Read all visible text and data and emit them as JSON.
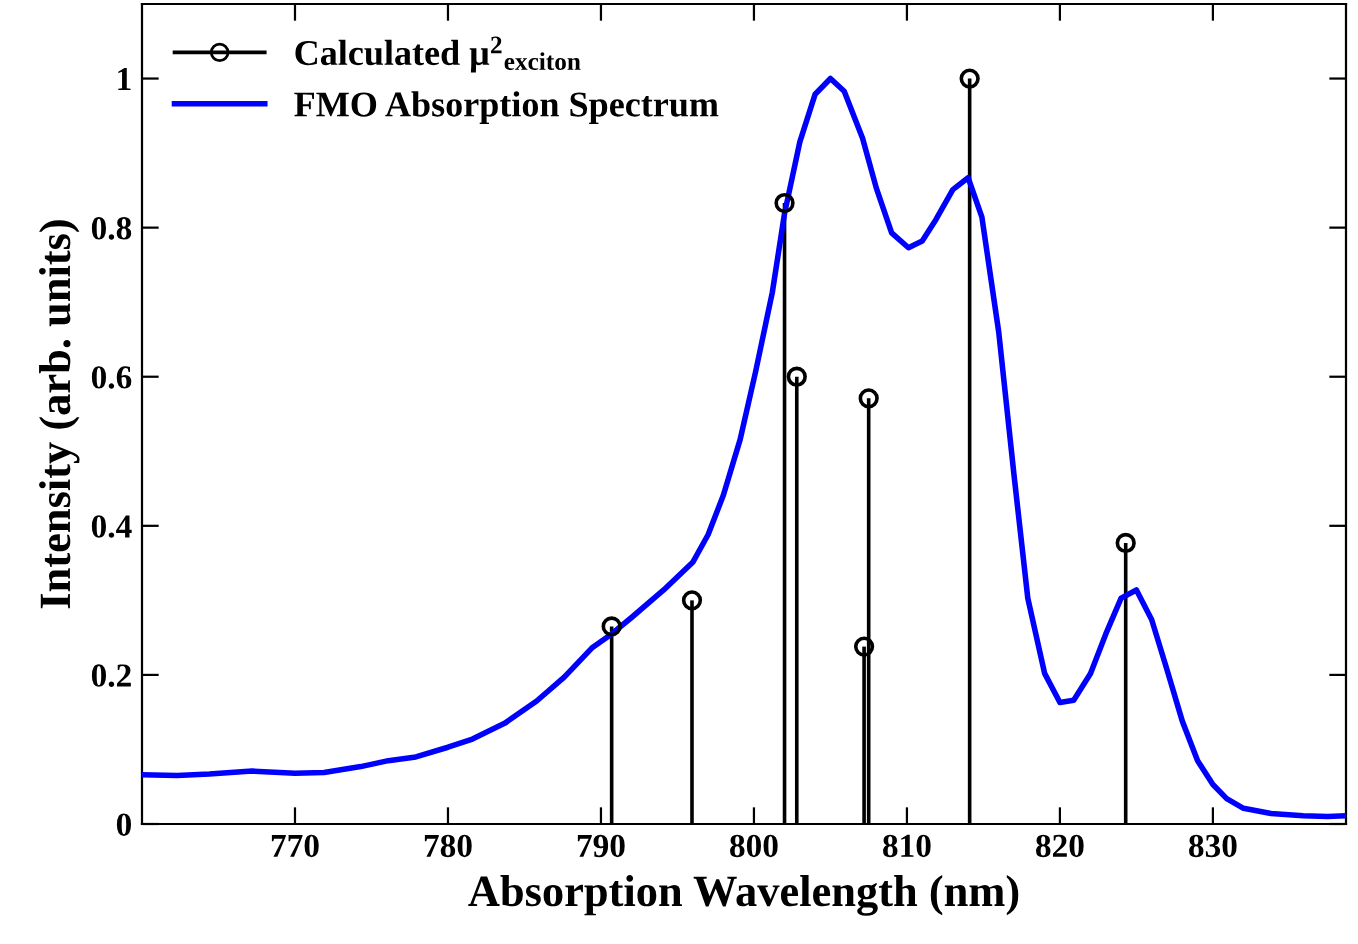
{
  "chart_data": {
    "type": "line",
    "xlabel": "Absorption Wavelength (nm)",
    "ylabel": "Intensity (arb. units)",
    "xlim": [
      760,
      838.7
    ],
    "ylim": [
      0,
      1.1
    ],
    "xticks": [
      770,
      780,
      790,
      800,
      810,
      820,
      830
    ],
    "yticks": [
      0,
      {
        "value": 0.2,
        "label": "0.2"
      },
      {
        "value": 0.4,
        "label": "0.4"
      },
      {
        "value": 0.6,
        "label": "0.6"
      },
      {
        "value": 0.8,
        "label": "0.8"
      },
      1
    ],
    "legend": "top left",
    "grid": false,
    "series": [
      {
        "name": "Calculated μ$^{2}$$_{exciton}$",
        "type": "lollipop",
        "color": "#000000",
        "marker": "circle",
        "x": [
          790.7,
          795.95,
          802.0,
          802.8,
          807.2,
          807.5,
          814.1,
          824.3
        ],
        "values": [
          0.265,
          0.3,
          0.833,
          0.6,
          0.238,
          0.571,
          1.0,
          0.377
        ]
      },
      {
        "name": "FMO Absorption Spectrum",
        "color": "#0000ff",
        "marker": "none",
        "line_style": "solid",
        "x": [
          760.0,
          762.3,
          764.4,
          767.2,
          770,
          771.9,
          774.3,
          776.1,
          777.9,
          780,
          781.6,
          783.7,
          785.8,
          787.6,
          789.4,
          790.7,
          792.0,
          794.1,
          796.0,
          797.0,
          798.0,
          799.1,
          800.1,
          801.2,
          802.0,
          803.0,
          804.0,
          805.0,
          805.9,
          807.1,
          808.0,
          809.0,
          810.1,
          811.0,
          811.9,
          813.0,
          814.0,
          814.9,
          816.0,
          817.0,
          817.9,
          819.0,
          820.0,
          820.9,
          822.0,
          823.0,
          824.0,
          825.0,
          826.0,
          827.0,
          828.0,
          829.0,
          830.0,
          830.9,
          832.0,
          833.8,
          835.9,
          837.5,
          838.7
        ],
        "values": [
          0.066,
          0.065,
          0.067,
          0.071,
          0.068,
          0.069,
          0.077,
          0.085,
          0.09,
          0.103,
          0.114,
          0.135,
          0.165,
          0.197,
          0.236,
          0.255,
          0.277,
          0.314,
          0.351,
          0.388,
          0.441,
          0.516,
          0.606,
          0.713,
          0.819,
          0.915,
          0.979,
          1.0,
          0.983,
          0.92,
          0.853,
          0.793,
          0.773,
          0.782,
          0.811,
          0.851,
          0.867,
          0.814,
          0.66,
          0.468,
          0.303,
          0.202,
          0.163,
          0.166,
          0.202,
          0.255,
          0.303,
          0.314,
          0.274,
          0.207,
          0.138,
          0.085,
          0.053,
          0.034,
          0.021,
          0.014,
          0.011,
          0.01,
          0.011
        ]
      }
    ]
  }
}
